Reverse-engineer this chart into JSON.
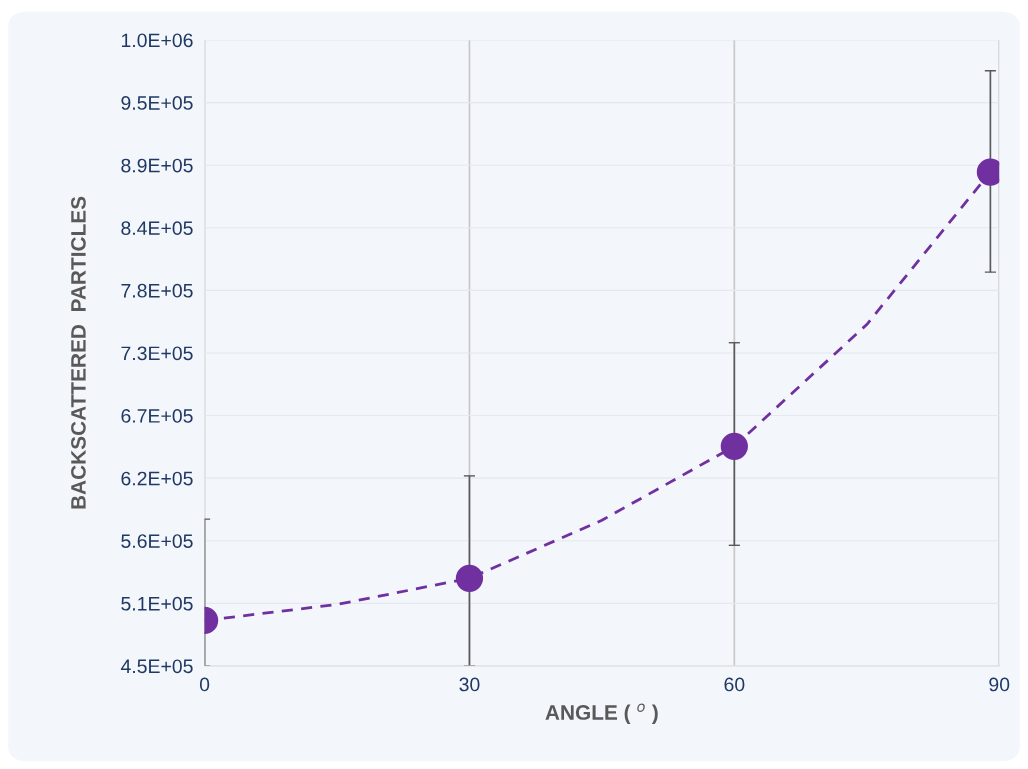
{
  "chart_data": {
    "type": "scatter",
    "xlabel": "ANGLE ( $^{o}$ )",
    "ylabel": "BACKSCATTERED  PARTICLES",
    "xlim": [
      0,
      90
    ],
    "xticks": [
      0,
      30,
      60,
      90
    ],
    "ylim": [
      450000,
      1000000
    ],
    "yticks": [
      {
        "value": 450000,
        "label": "4.5E+05"
      },
      {
        "value": 505000,
        "label": "5.1E+05"
      },
      {
        "value": 560000,
        "label": "5.6E+05"
      },
      {
        "value": 615000,
        "label": "6.2E+05"
      },
      {
        "value": 670000,
        "label": "6.7E+05"
      },
      {
        "value": 725000,
        "label": "7.3E+05"
      },
      {
        "value": 780000,
        "label": "7.8E+05"
      },
      {
        "value": 835000,
        "label": "8.4E+05"
      },
      {
        "value": 890000,
        "label": "8.9E+05"
      },
      {
        "value": 945000,
        "label": "9.5E+05"
      },
      {
        "value": 1000000,
        "label": "1.0E+06"
      }
    ],
    "grid": true,
    "series": [
      {
        "type": "line",
        "x": [
          0,
          15,
          30,
          45,
          60,
          75,
          89
        ],
        "values": [
          490000,
          504000,
          527000,
          578000,
          643000,
          750000,
          884000
        ],
        "color": "#7030a0",
        "line_style": "dashed",
        "marker": "none"
      },
      {
        "type": "scatter",
        "x": [
          0,
          30,
          60,
          89
        ],
        "values": [
          490000,
          527000,
          643000,
          884000
        ],
        "color": "#7030a0",
        "marker": "circle",
        "errors": [
          [
            450000,
            579000
          ],
          [
            450000,
            617000
          ],
          [
            556000,
            734000
          ],
          [
            796000,
            973000
          ]
        ]
      }
    ]
  }
}
